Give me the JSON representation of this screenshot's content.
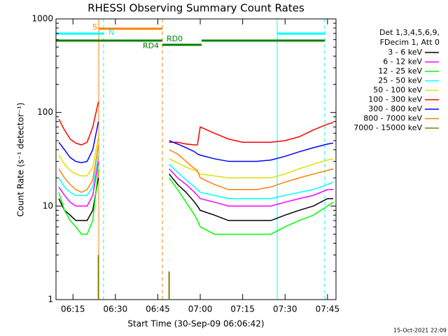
{
  "chart_data": {
    "type": "line",
    "title": "RHESSI Observing Summary Count Rates",
    "x_label": "Start Time (30-Sep-09 06:06:42)",
    "y_label": "Count Rate (s⁻¹ detector⁻¹)",
    "legend_header": [
      "Det 1,3,4,5,6,9,",
      "FDecim 1, Att 0"
    ],
    "timestamp": "15-Oct-2021 22:09",
    "annotations": [
      "S",
      "N",
      "RD4",
      "RD0"
    ],
    "log_scale": true,
    "xlim": [
      "06:09",
      "07:48"
    ],
    "xticks": [
      "06:15",
      "06:30",
      "06:45",
      "07:00",
      "07:15",
      "07:30",
      "07:45"
    ],
    "ylim": [
      1,
      1000
    ],
    "yticks": [
      1,
      10,
      100,
      1000
    ],
    "x": [
      "06:10",
      "06:12",
      "06:14",
      "06:16",
      "06:18",
      "06:20",
      "06:22",
      "06:24",
      "06:36",
      "06:49",
      "06:52",
      "06:55",
      "06:58",
      "06:59",
      "07:00",
      "07:05",
      "07:10",
      "07:15",
      "07:20",
      "07:25",
      "07:30",
      "07:35",
      "07:40",
      "07:45",
      "07:47"
    ],
    "series": [
      {
        "name": "3 - 6 keV",
        "color": "#000000",
        "values": [
          12,
          9,
          8,
          7,
          7,
          7,
          9,
          20,
          null,
          22,
          17,
          14,
          11,
          10,
          9,
          8,
          7,
          7,
          7,
          7,
          8,
          9,
          10,
          12,
          12
        ]
      },
      {
        "name": "6 - 12 keV",
        "color": "#ff00ff",
        "values": [
          16,
          13,
          11,
          10,
          10,
          10,
          13,
          30,
          null,
          25,
          20,
          17,
          14,
          13,
          12,
          11,
          10,
          10,
          10,
          10,
          11,
          12,
          13,
          15,
          15
        ]
      },
      {
        "name": "12 - 25 keV",
        "color": "#00ff00",
        "values": [
          14,
          9,
          7,
          6,
          5,
          5,
          7,
          25,
          null,
          20,
          15,
          11,
          8,
          7,
          6,
          5,
          5,
          5,
          5,
          5,
          6,
          7,
          8,
          10,
          11
        ]
      },
      {
        "name": "25 - 50 keV",
        "color": "#00ffff",
        "values": [
          20,
          16,
          14,
          13,
          13,
          13,
          16,
          35,
          null,
          28,
          23,
          19,
          16,
          15,
          14,
          13,
          12,
          12,
          12,
          12,
          13,
          14,
          15,
          17,
          18
        ]
      },
      {
        "name": "50 - 100 keV",
        "color": "#e0e000",
        "values": [
          35,
          28,
          24,
          22,
          21,
          21,
          26,
          55,
          null,
          32,
          29,
          26,
          24,
          23,
          22,
          21,
          20,
          20,
          20,
          20,
          22,
          25,
          28,
          31,
          32
        ]
      },
      {
        "name": "100 - 300 keV",
        "color": "#ff0000",
        "values": [
          85,
          65,
          52,
          47,
          45,
          48,
          70,
          130,
          null,
          48,
          48,
          46,
          45,
          45,
          70,
          60,
          52,
          48,
          48,
          48,
          50,
          55,
          65,
          75,
          78
        ]
      },
      {
        "name": "300 - 800 keV",
        "color": "#0000ff",
        "values": [
          48,
          40,
          33,
          30,
          29,
          30,
          40,
          80,
          null,
          50,
          46,
          42,
          38,
          36,
          35,
          32,
          30,
          30,
          30,
          31,
          34,
          38,
          42,
          46,
          47
        ]
      },
      {
        "name": "800 - 7000 keV",
        "color": "#ff8000",
        "values": [
          25,
          20,
          17,
          15,
          14,
          15,
          19,
          45,
          null,
          40,
          36,
          30,
          25,
          24,
          20,
          17,
          15,
          15,
          15,
          16,
          18,
          20,
          22,
          24,
          25
        ]
      },
      {
        "name": "7000 - 15000 keV",
        "color": "#808000",
        "values": [
          null,
          null,
          null,
          null,
          null,
          null,
          null,
          3,
          null,
          2,
          null,
          null,
          null,
          null,
          null,
          null,
          null,
          null,
          null,
          null,
          null,
          null,
          null,
          null,
          null
        ]
      }
    ]
  }
}
